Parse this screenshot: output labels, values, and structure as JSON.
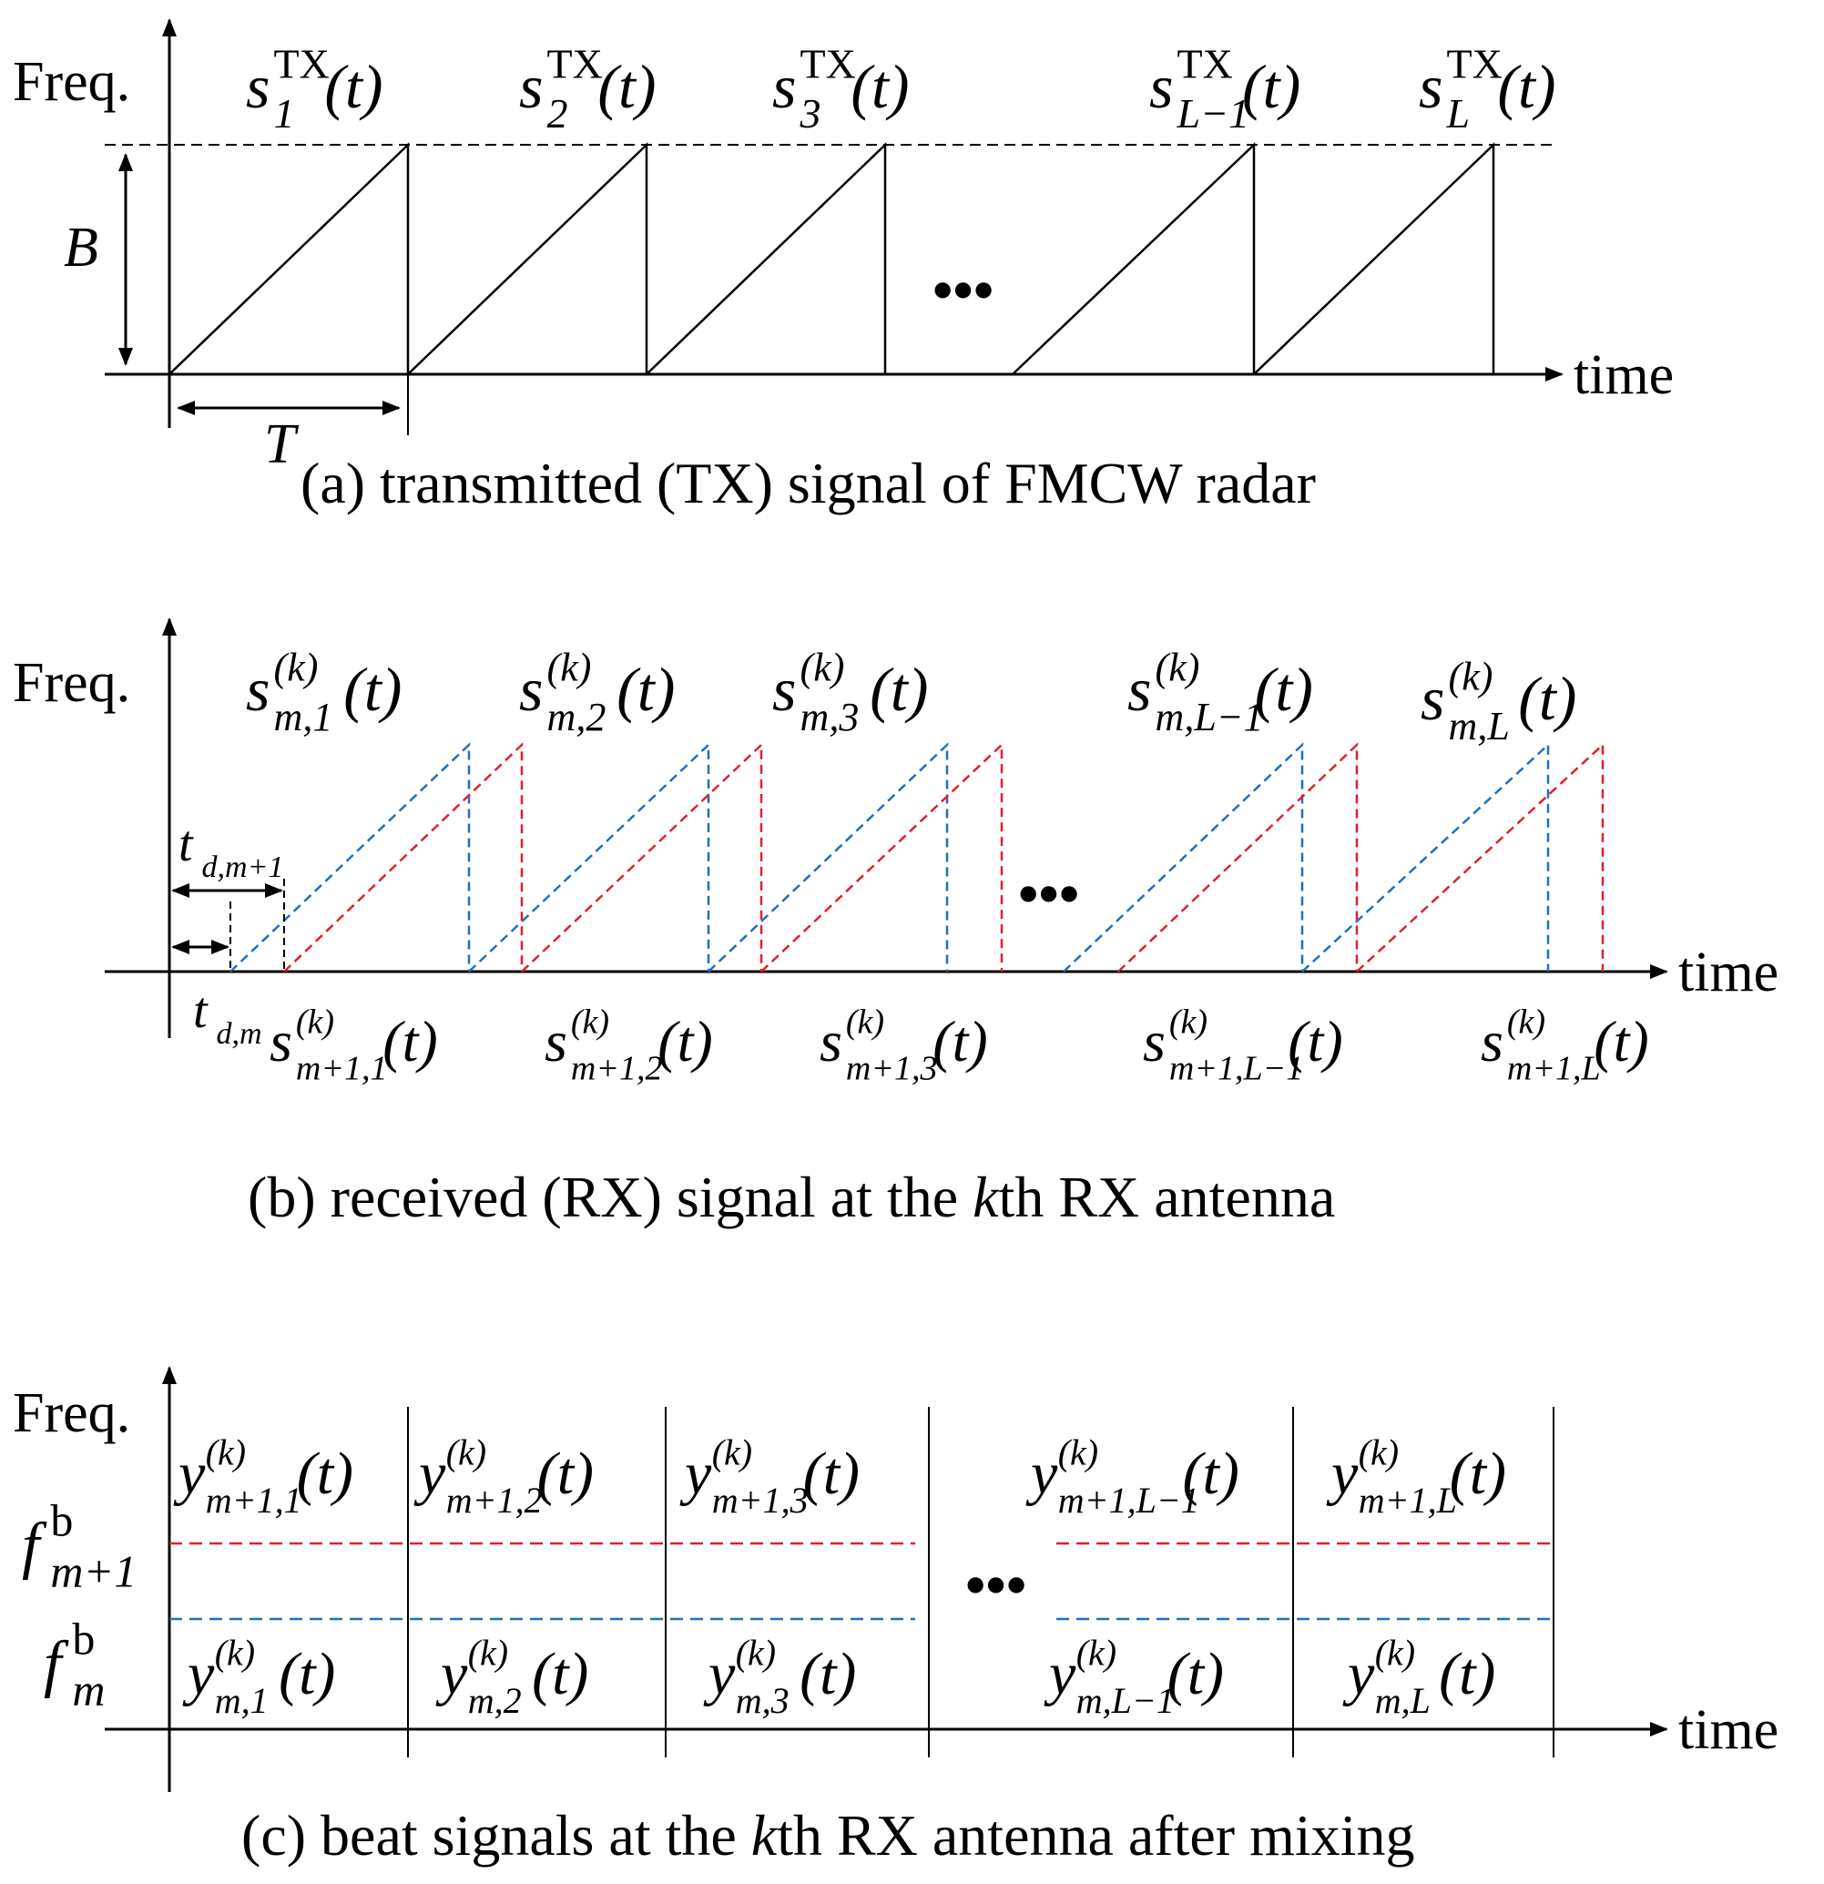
{
  "axis": {
    "freq_label": "Freq.",
    "time_label": "time",
    "ellipsis": "•••"
  },
  "panel_a": {
    "caption": "(a) transmitted (TX) signal of FMCW radar",
    "bandwidth_label": "B",
    "period_label": "T",
    "signal_labels": [
      {
        "base": "s",
        "sub": "1",
        "sup": "TX",
        "arg": "(t)"
      },
      {
        "base": "s",
        "sub": "2",
        "sup": "TX",
        "arg": "(t)"
      },
      {
        "base": "s",
        "sub": "3",
        "sup": "TX",
        "arg": "(t)"
      },
      {
        "base": "s",
        "sub": "L−1",
        "sup": "TX",
        "arg": "(t)"
      },
      {
        "base": "s",
        "sub": "L",
        "sup": "TX",
        "arg": "(t)"
      }
    ]
  },
  "panel_b": {
    "caption_pre": "(b) received (RX) signal at the ",
    "caption_k": "k",
    "caption_post": "th RX antenna",
    "delay_labels": [
      {
        "base": "t",
        "sub": "d,m+1"
      },
      {
        "base": "t",
        "sub": "d,m"
      }
    ],
    "top_labels": [
      {
        "base": "s",
        "sub": "m,1",
        "sup": "(k)",
        "arg": "(t)"
      },
      {
        "base": "s",
        "sub": "m,2",
        "sup": "(k)",
        "arg": "(t)"
      },
      {
        "base": "s",
        "sub": "m,3",
        "sup": "(k)",
        "arg": "(t)"
      },
      {
        "base": "s",
        "sub": "m,L−1",
        "sup": "(k)",
        "arg": "(t)"
      },
      {
        "base": "s",
        "sub": "m,L",
        "sup": "(k)",
        "arg": "(t)"
      }
    ],
    "bottom_labels": [
      {
        "base": "s",
        "sub": "m+1,1",
        "sup": "(k)",
        "arg": "(t)"
      },
      {
        "base": "s",
        "sub": "m+1,2",
        "sup": "(k)",
        "arg": "(t)"
      },
      {
        "base": "s",
        "sub": "m+1,3",
        "sup": "(k)",
        "arg": "(t)"
      },
      {
        "base": "s",
        "sub": "m+1,L−1",
        "sup": "(k)",
        "arg": "(t)"
      },
      {
        "base": "s",
        "sub": "m+1,L",
        "sup": "(k)",
        "arg": "(t)"
      }
    ],
    "colors": {
      "series_m": "#1f6fc0",
      "series_m1": "#e0202a"
    }
  },
  "panel_c": {
    "caption_pre": "(c) beat signals at the ",
    "caption_k": "k",
    "caption_post": "th RX antenna after mixing",
    "freq_labels": [
      {
        "base": "f",
        "sub": "m+1",
        "sup": "b"
      },
      {
        "base": "f",
        "sub": "m",
        "sup": "b"
      }
    ],
    "top_labels": [
      {
        "base": "y",
        "sub": "m+1,1",
        "sup": "(k)",
        "arg": "(t)"
      },
      {
        "base": "y",
        "sub": "m+1,2",
        "sup": "(k)",
        "arg": "(t)"
      },
      {
        "base": "y",
        "sub": "m+1,3",
        "sup": "(k)",
        "arg": "(t)"
      },
      {
        "base": "y",
        "sub": "m+1,L−1",
        "sup": "(k)",
        "arg": "(t)"
      },
      {
        "base": "y",
        "sub": "m+1,L",
        "sup": "(k)",
        "arg": "(t)"
      }
    ],
    "bottom_labels": [
      {
        "base": "y",
        "sub": "m,1",
        "sup": "(k)",
        "arg": "(t)"
      },
      {
        "base": "y",
        "sub": "m,2",
        "sup": "(k)",
        "arg": "(t)"
      },
      {
        "base": "y",
        "sub": "m,3",
        "sup": "(k)",
        "arg": "(t)"
      },
      {
        "base": "y",
        "sub": "m,L−1",
        "sup": "(k)",
        "arg": "(t)"
      },
      {
        "base": "y",
        "sub": "m,L",
        "sup": "(k)",
        "arg": "(t)"
      }
    ]
  }
}
